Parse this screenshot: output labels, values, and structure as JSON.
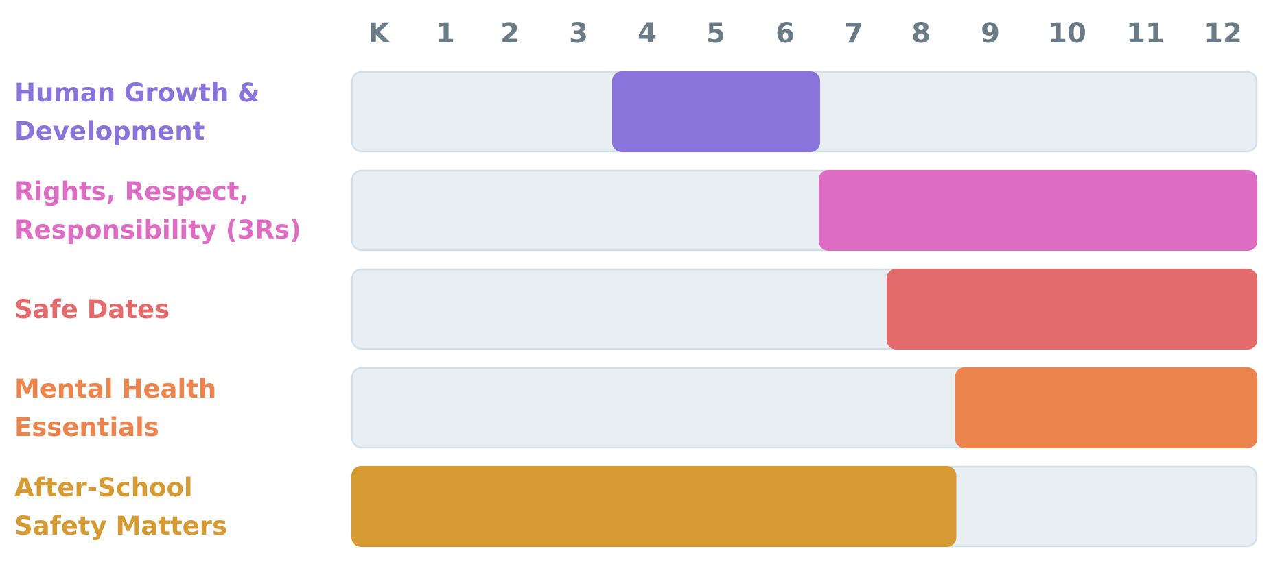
{
  "chart_data": {
    "type": "bar",
    "subtype": "range-timeline",
    "title": "",
    "xlabel": "",
    "ylabel": "",
    "categories": [
      "K",
      "1",
      "2",
      "3",
      "4",
      "5",
      "6",
      "7",
      "8",
      "9",
      "10",
      "11",
      "12"
    ],
    "series": [
      {
        "name": "Human Growth & Development",
        "label_lines": [
          "Human Growth &",
          "Development"
        ],
        "start": "4",
        "end": "6",
        "color": "#8874db"
      },
      {
        "name": "Rights, Respect, Responsibility (3Rs)",
        "label_lines": [
          "Rights, Respect,",
          "Responsibility (3Rs)"
        ],
        "start": "7",
        "end": "12",
        "color": "#dd6dc2"
      },
      {
        "name": "Safe Dates",
        "label_lines": [
          "Safe Dates"
        ],
        "start": "8",
        "end": "12",
        "color": "#e46b6b"
      },
      {
        "name": "Mental Health Essentials",
        "label_lines": [
          "Mental Health",
          "Essentials"
        ],
        "start": "9",
        "end": "12",
        "color": "#ec844d"
      },
      {
        "name": "After-School Safety Matters",
        "label_lines": [
          "After-School",
          "Safety Matters"
        ],
        "start": "K",
        "end": "8",
        "color": "#d69a33"
      }
    ],
    "grid": false,
    "legend": "none"
  }
}
